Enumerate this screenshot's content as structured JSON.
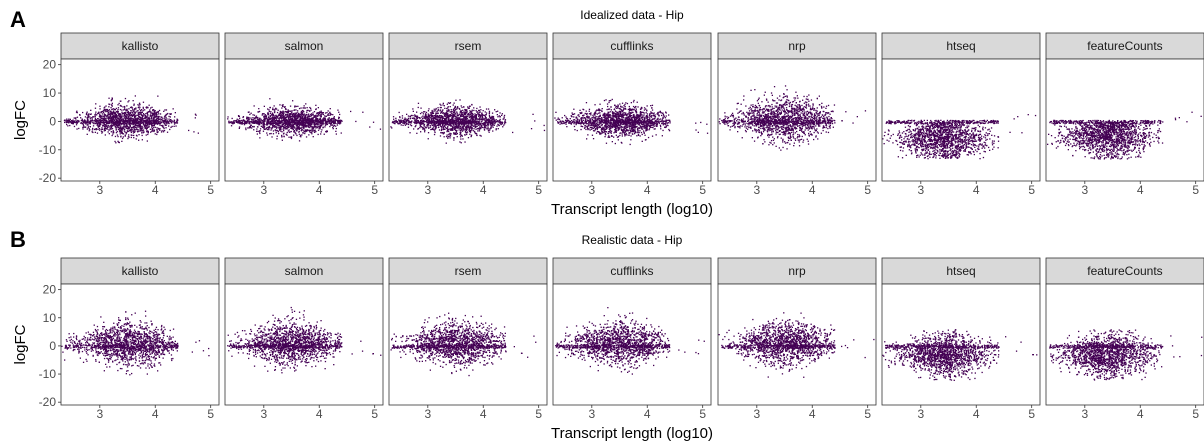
{
  "chart_data": [
    {
      "type": "scatter",
      "panel_label": "A",
      "title": "Idealized data  -  Hip",
      "xlabel": "Transcript length (log10)",
      "ylabel": "logFC",
      "xlim": [
        2.3,
        5.15
      ],
      "ylim": [
        -21,
        22
      ],
      "x_ticks": [
        3,
        4,
        5
      ],
      "y_ticks": [
        -20,
        -10,
        0,
        10,
        20
      ],
      "point_color": "#440154",
      "facets": [
        {
          "label": "kallisto",
          "center": [
            3.5,
            0.5
          ],
          "spread": [
            0.45,
            2.5
          ],
          "range": [
            -9,
            13
          ]
        },
        {
          "label": "salmon",
          "center": [
            3.5,
            0.3
          ],
          "spread": [
            0.45,
            2.2
          ],
          "range": [
            -9,
            12
          ]
        },
        {
          "label": "rsem",
          "center": [
            3.5,
            0.4
          ],
          "spread": [
            0.45,
            2.3
          ],
          "range": [
            -9,
            12
          ]
        },
        {
          "label": "cufflinks",
          "center": [
            3.5,
            0.5
          ],
          "spread": [
            0.45,
            2.5
          ],
          "range": [
            -9,
            13
          ]
        },
        {
          "label": "nrp",
          "center": [
            3.5,
            1.0
          ],
          "spread": [
            0.45,
            3.5
          ],
          "range": [
            -12,
            13
          ]
        },
        {
          "label": "htseq",
          "center": [
            3.4,
            -6.0
          ],
          "spread": [
            0.4,
            3.5
          ],
          "range": [
            -13,
            0
          ]
        },
        {
          "label": "featureCounts",
          "center": [
            3.4,
            -5.0
          ],
          "spread": [
            0.4,
            3.5
          ],
          "range": [
            -13,
            0
          ]
        }
      ]
    },
    {
      "type": "scatter",
      "panel_label": "B",
      "title": "Realistic data  -  Hip",
      "xlabel": "Transcript length (log10)",
      "ylabel": "logFC",
      "xlim": [
        2.3,
        5.15
      ],
      "ylim": [
        -21,
        22
      ],
      "x_ticks": [
        3,
        4,
        5
      ],
      "y_ticks": [
        -20,
        -10,
        0,
        10,
        20
      ],
      "point_color": "#440154",
      "facets": [
        {
          "label": "kallisto",
          "center": [
            3.5,
            1.0
          ],
          "spread": [
            0.45,
            3.5
          ],
          "range": [
            -11,
            14
          ]
        },
        {
          "label": "salmon",
          "center": [
            3.5,
            1.0
          ],
          "spread": [
            0.45,
            3.5
          ],
          "range": [
            -10,
            14
          ]
        },
        {
          "label": "rsem",
          "center": [
            3.5,
            1.0
          ],
          "spread": [
            0.45,
            3.5
          ],
          "range": [
            -11,
            14
          ]
        },
        {
          "label": "cufflinks",
          "center": [
            3.5,
            1.0
          ],
          "spread": [
            0.45,
            3.5
          ],
          "range": [
            -10,
            14
          ]
        },
        {
          "label": "nrp",
          "center": [
            3.5,
            1.0
          ],
          "spread": [
            0.45,
            3.5
          ],
          "range": [
            -11,
            12
          ]
        },
        {
          "label": "htseq",
          "center": [
            3.4,
            -3.0
          ],
          "spread": [
            0.4,
            3.5
          ],
          "range": [
            -12,
            6
          ]
        },
        {
          "label": "featureCounts",
          "center": [
            3.4,
            -3.0
          ],
          "spread": [
            0.4,
            3.5
          ],
          "range": [
            -12,
            6
          ]
        }
      ]
    }
  ]
}
